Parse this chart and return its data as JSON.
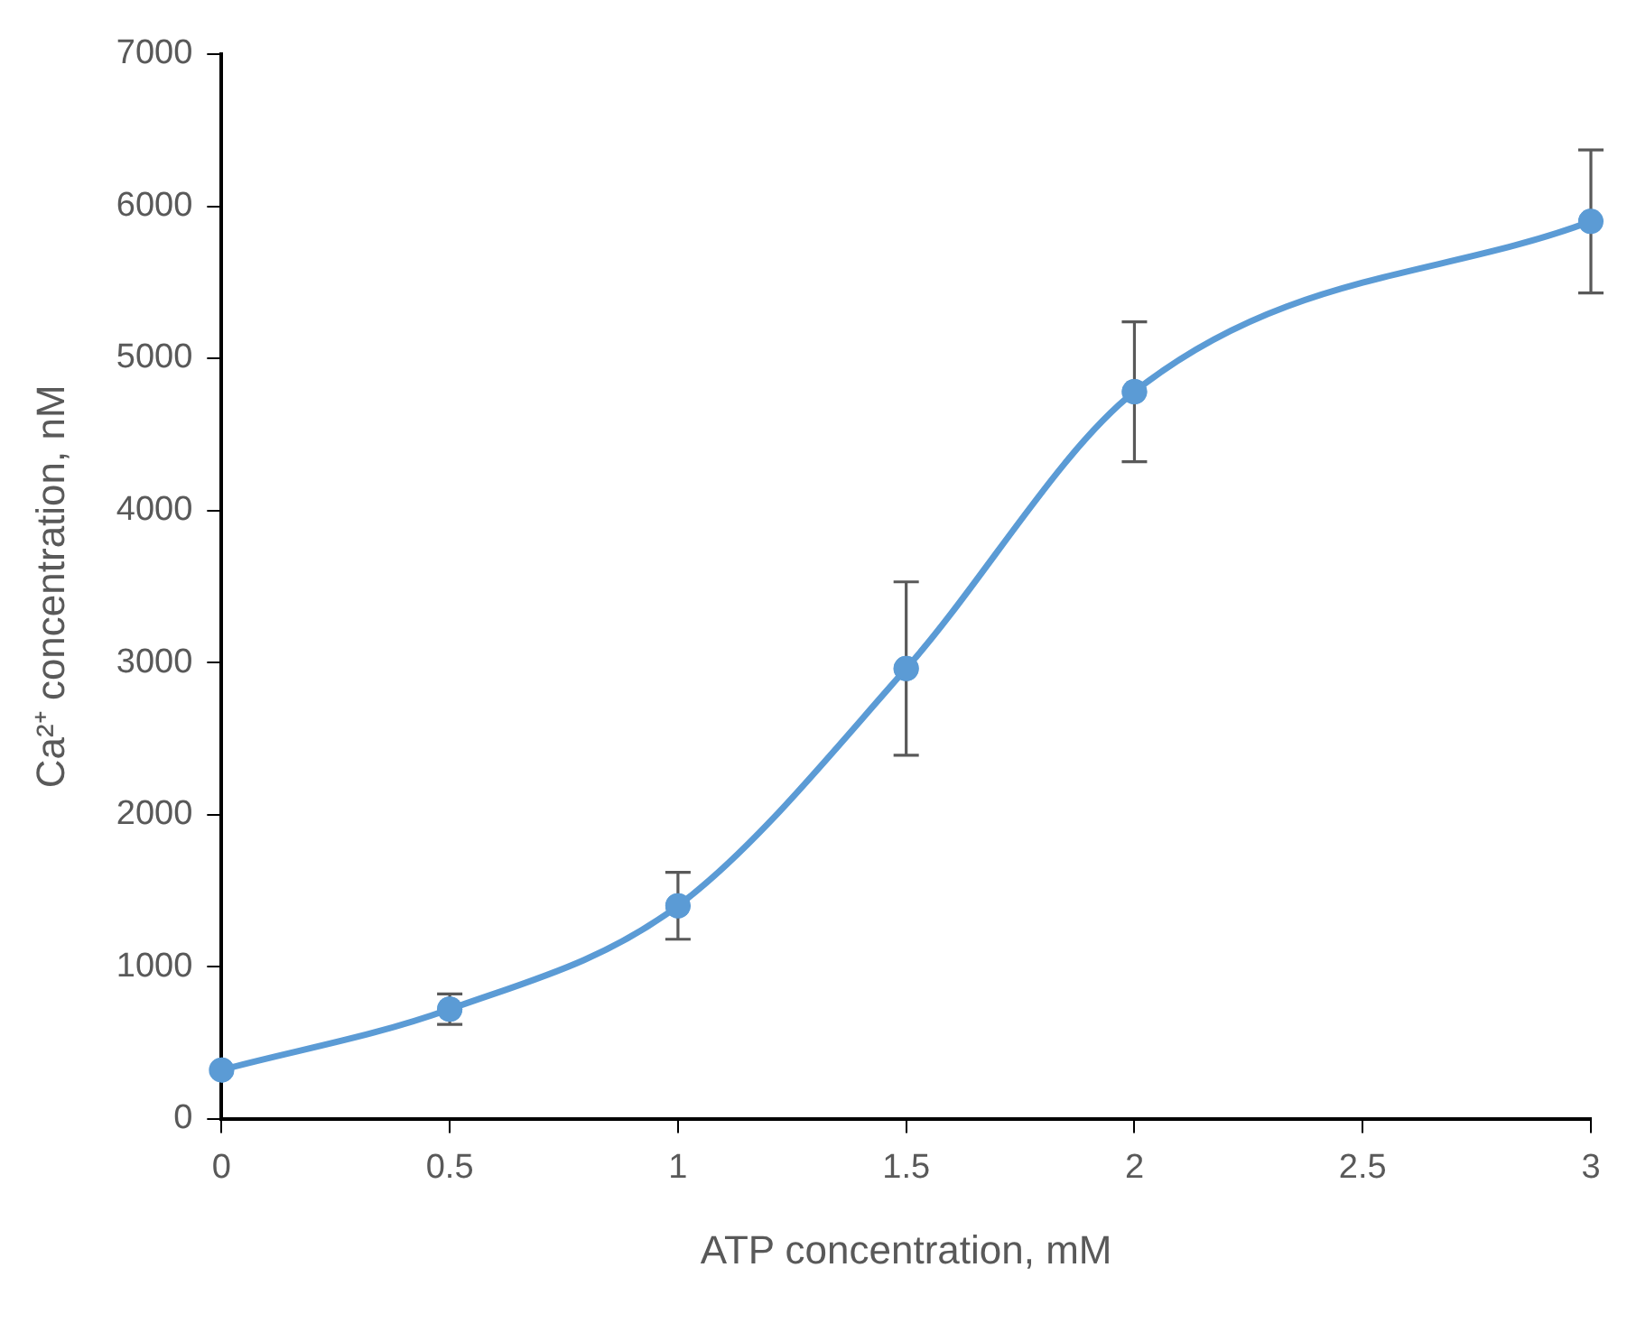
{
  "chart_data": {
    "type": "line",
    "xlabel": "ATP concentration, mM",
    "ylabel": "Ca²⁺ concentration, nM",
    "x": [
      0,
      0.5,
      1,
      1.5,
      2,
      3
    ],
    "series": [
      {
        "color": "#5b9bd5",
        "values": [
          320,
          720,
          1400,
          2960,
          4780,
          5900
        ],
        "errors": [
          null,
          100,
          220,
          570,
          460,
          470
        ]
      }
    ],
    "xlim": [
      0,
      3
    ],
    "xticks": [
      0,
      0.5,
      1,
      1.5,
      2,
      2.5,
      3
    ],
    "ylim": [
      0,
      7000
    ],
    "yticks": [
      0,
      1000,
      2000,
      3000,
      4000,
      5000,
      6000,
      7000
    ],
    "grid": false,
    "legend": false,
    "marker": "circle",
    "line_style": "solid"
  }
}
